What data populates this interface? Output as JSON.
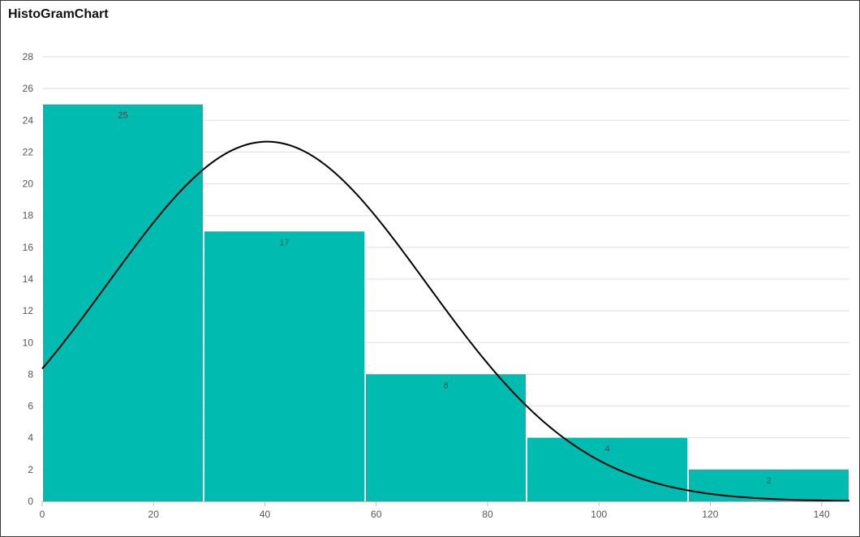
{
  "chart_data": {
    "type": "bar",
    "title": "HistoGramChart",
    "xlabel": "",
    "ylabel": "",
    "bins": [
      {
        "x0": 0,
        "x1": 29,
        "value": 25
      },
      {
        "x0": 29,
        "x1": 58,
        "value": 17
      },
      {
        "x0": 58,
        "x1": 87,
        "value": 8
      },
      {
        "x0": 87,
        "x1": 116,
        "value": 4
      },
      {
        "x0": 116,
        "x1": 145,
        "value": 2
      }
    ],
    "bar_labels": [
      "25",
      "17",
      "8",
      "4",
      "2"
    ],
    "xlim": [
      0,
      145
    ],
    "ylim": [
      0,
      28
    ],
    "xticks": [
      0,
      20,
      40,
      60,
      80,
      100,
      120,
      140
    ],
    "yticks": [
      0,
      2,
      4,
      6,
      8,
      10,
      12,
      14,
      16,
      18,
      20,
      22,
      24,
      26,
      28
    ],
    "normal_curve": {
      "mean": 40.4,
      "sd": 28.6,
      "total": 56,
      "bin_width": 29
    },
    "grid": true,
    "legend": "none",
    "colors": {
      "bar": "#00BBAF",
      "curve": "#000000",
      "grid": "#dddddd"
    }
  }
}
